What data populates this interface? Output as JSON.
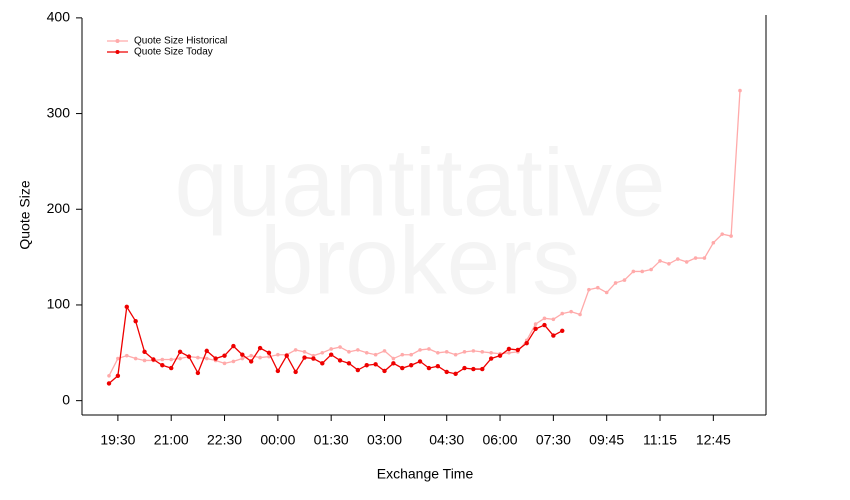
{
  "chart_data": {
    "type": "line",
    "watermark": [
      "quantitative",
      "brokers"
    ],
    "xlabel": "Exchange Time",
    "ylabel": "Quote Size",
    "categories": [
      null,
      "19:30",
      null,
      null,
      null,
      null,
      null,
      "21:00",
      null,
      null,
      null,
      null,
      null,
      "22:30",
      null,
      null,
      null,
      null,
      null,
      "00:00",
      null,
      null,
      null,
      null,
      null,
      "01:30",
      null,
      null,
      null,
      null,
      null,
      "03:00",
      null,
      null,
      null,
      null,
      null,
      null,
      "04:30",
      null,
      null,
      null,
      null,
      null,
      "06:00",
      null,
      null,
      null,
      null,
      null,
      "07:30",
      null,
      null,
      null,
      null,
      null,
      "09:45",
      null,
      null,
      null,
      null,
      null,
      "11:15",
      null,
      null,
      null,
      null,
      null,
      "12:45",
      null,
      null,
      null
    ],
    "ylim": [
      -15,
      403
    ],
    "yticks": [
      0,
      100,
      200,
      300,
      400
    ],
    "legend": "top-left",
    "series": [
      {
        "name": "Quote Size Historical",
        "color": "#ffaaaa",
        "values": [
          26,
          44,
          47,
          44,
          42,
          42,
          43,
          43,
          44,
          46,
          45,
          44,
          42,
          39,
          41,
          44,
          47,
          45,
          46,
          48,
          48,
          53,
          51,
          47,
          50,
          54,
          56,
          51,
          53,
          50,
          48,
          52,
          44,
          48,
          48,
          53,
          54,
          50,
          51,
          48,
          51,
          52,
          51,
          50,
          49,
          50,
          51,
          63,
          80,
          86,
          85,
          91,
          93,
          90,
          116,
          118,
          113,
          123,
          126,
          135,
          135,
          137,
          146,
          143,
          148,
          145,
          149,
          149,
          165,
          174,
          172,
          324
        ]
      },
      {
        "name": "Quote Size Today",
        "color": "#ee0000",
        "values": [
          18,
          26,
          98,
          83,
          51,
          43,
          37,
          34,
          51,
          46,
          29,
          52,
          44,
          47,
          57,
          48,
          41,
          55,
          50,
          31,
          47,
          30,
          45,
          44,
          39,
          48,
          42,
          39,
          32,
          37,
          38,
          31,
          39,
          34,
          37,
          41,
          34,
          36,
          30,
          28,
          34,
          33,
          33,
          44,
          47,
          54,
          53,
          60,
          75,
          79,
          68,
          73,
          null,
          null,
          null,
          null,
          null,
          null,
          null,
          null,
          null,
          null,
          null,
          null,
          null,
          null,
          null,
          null,
          null,
          null,
          null,
          null
        ]
      }
    ]
  }
}
